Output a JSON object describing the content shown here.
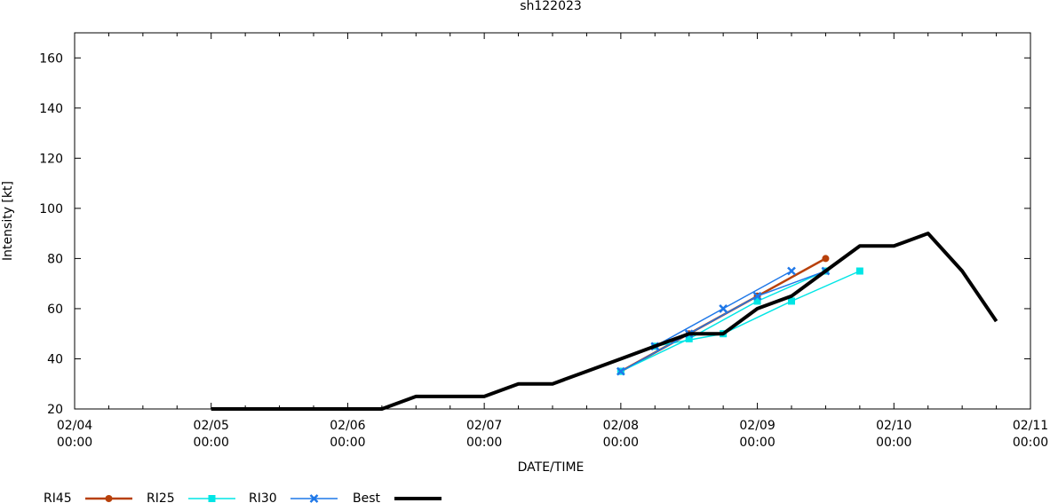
{
  "chart_data": {
    "type": "line",
    "title": "sh122023",
    "xlabel": "DATE/TIME",
    "ylabel": "Intensity [kt]",
    "xlim": [
      "02/04 00:00",
      "02/11 00:00"
    ],
    "ylim": [
      20,
      170
    ],
    "x_ticks": [
      {
        "value": "02/04 00:00",
        "line1": "02/04",
        "line2": "00:00"
      },
      {
        "value": "02/05 00:00",
        "line1": "02/05",
        "line2": "00:00"
      },
      {
        "value": "02/06 00:00",
        "line1": "02/06",
        "line2": "00:00"
      },
      {
        "value": "02/07 00:00",
        "line1": "02/07",
        "line2": "00:00"
      },
      {
        "value": "02/08 00:00",
        "line1": "02/08",
        "line2": "00:00"
      },
      {
        "value": "02/09 00:00",
        "line1": "02/09",
        "line2": "00:00"
      },
      {
        "value": "02/10 00:00",
        "line1": "02/10",
        "line2": "00:00"
      },
      {
        "value": "02/11 00:00",
        "line1": "02/11",
        "line2": "00:00"
      }
    ],
    "y_ticks": [
      20,
      40,
      60,
      80,
      100,
      120,
      140,
      160
    ],
    "grid": false,
    "legend_position": "bottom",
    "series": [
      {
        "name": "RI45",
        "color": "#b8400a",
        "marker": "circle",
        "width": 2.5,
        "lines": [
          [
            [
              "02/08 00:00",
              35
            ],
            [
              "02/08 12:00",
              50
            ],
            [
              "02/09 00:00",
              65
            ],
            [
              "02/09 12:00",
              80
            ]
          ]
        ]
      },
      {
        "name": "RI25",
        "color": "#00e5e5",
        "marker": "square",
        "width": 1.5,
        "lines": [
          [
            [
              "02/08 00:00",
              35
            ],
            [
              "02/08 12:00",
              48
            ],
            [
              "02/09 00:00",
              63
            ],
            [
              "02/09 12:00",
              75
            ]
          ],
          [
            [
              "02/08 06:00",
              45
            ],
            [
              "02/08 18:00",
              50
            ],
            [
              "02/09 06:00",
              63
            ],
            [
              "02/09 18:00",
              75
            ]
          ]
        ]
      },
      {
        "name": "RI30",
        "color": "#1f78e8",
        "marker": "x",
        "width": 1.5,
        "lines": [
          [
            [
              "02/08 00:00",
              35
            ],
            [
              "02/08 12:00",
              50
            ],
            [
              "02/09 00:00",
              65
            ],
            [
              "02/09 12:00",
              75
            ]
          ],
          [
            [
              "02/08 06:00",
              45
            ],
            [
              "02/08 18:00",
              60
            ],
            [
              "02/09 06:00",
              75
            ]
          ]
        ]
      },
      {
        "name": "Best",
        "color": "#000000",
        "marker": "none",
        "width": 4,
        "lines": [
          [
            [
              "02/05 00:00",
              20
            ],
            [
              "02/05 06:00",
              20
            ],
            [
              "02/05 12:00",
              20
            ],
            [
              "02/05 18:00",
              20
            ],
            [
              "02/06 00:00",
              20
            ],
            [
              "02/06 06:00",
              20
            ],
            [
              "02/06 12:00",
              25
            ],
            [
              "02/06 18:00",
              25
            ],
            [
              "02/07 00:00",
              25
            ],
            [
              "02/07 06:00",
              30
            ],
            [
              "02/07 12:00",
              30
            ],
            [
              "02/07 18:00",
              35
            ],
            [
              "02/08 00:00",
              40
            ],
            [
              "02/08 06:00",
              45
            ],
            [
              "02/08 12:00",
              50
            ],
            [
              "02/08 18:00",
              50
            ],
            [
              "02/09 00:00",
              60
            ],
            [
              "02/09 06:00",
              65
            ],
            [
              "02/09 12:00",
              75
            ],
            [
              "02/09 18:00",
              85
            ],
            [
              "02/10 00:00",
              85
            ],
            [
              "02/10 06:00",
              90
            ],
            [
              "02/10 12:00",
              75
            ],
            [
              "02/10 18:00",
              55
            ]
          ]
        ]
      }
    ]
  }
}
